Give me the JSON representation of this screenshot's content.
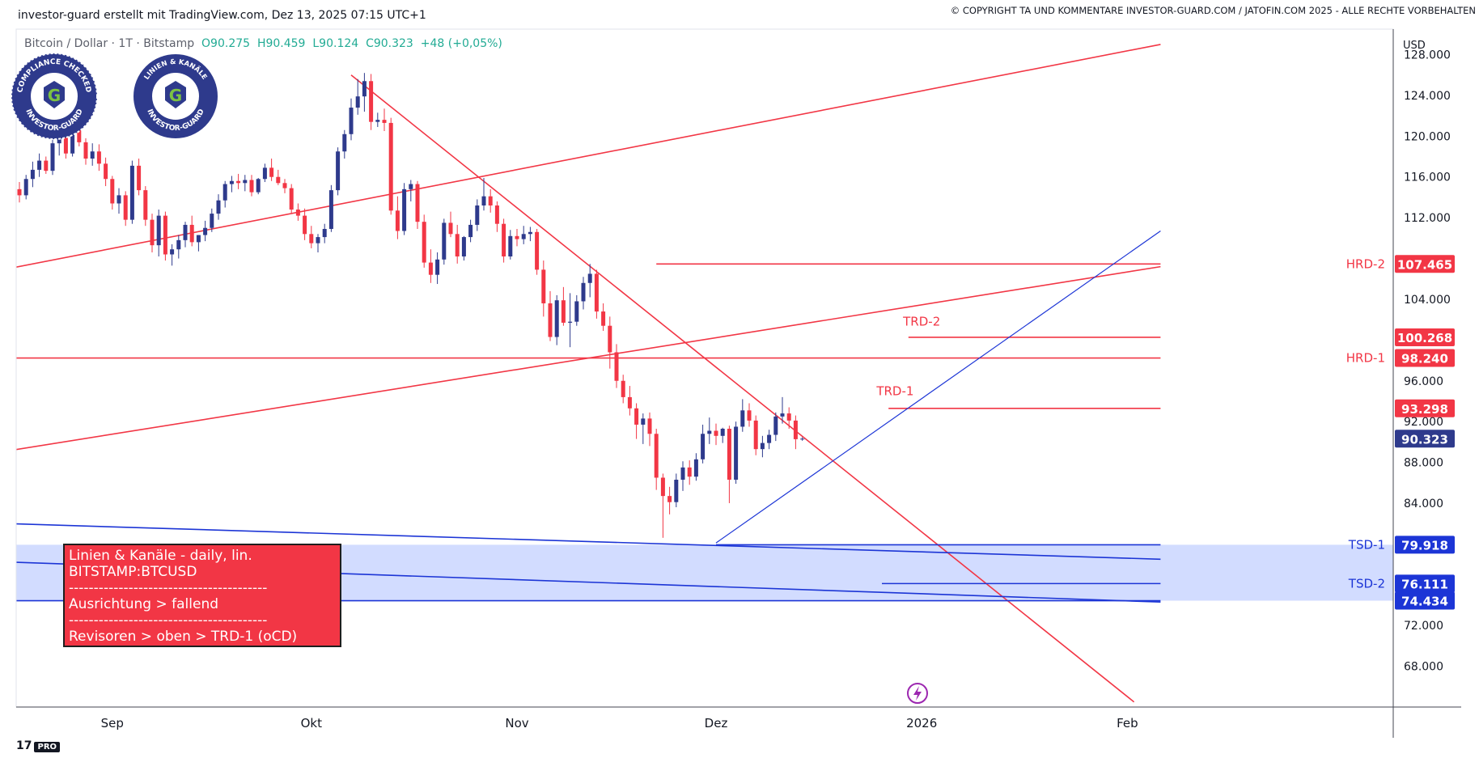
{
  "header": {
    "created_by": "investor-guard erstellt mit TradingView.com, Dez 13, 2025 07:15 UTC+1",
    "copyright": "© COPYRIGHT TA UND KOMMENTARE INVESTOR-GUARD.COM / JATOFIN.COM 2025 - ALLE RECHTE VORBEHALTEN"
  },
  "symbol": {
    "title": "Bitcoin / Dollar · 1T · Bitstamp",
    "open": "O90.275",
    "high": "H90.459",
    "low": "L90.124",
    "close": "C90.323",
    "change": "+48 (+0,05%)"
  },
  "badges": [
    {
      "text_top": "COMPLIANCE CHECKED",
      "text_bottom": "INVESTOR-GUARD",
      "letter": "G"
    },
    {
      "text_top": "LINIEN & KANÄLE",
      "text_bottom": "INVESTOR-GUARD",
      "letter": "G"
    }
  ],
  "info_box": {
    "line1": "Linien & Kanäle - daily, lin.",
    "line2": "BITSTAMP:BTCUSD",
    "sep1": "----------------------------------------",
    "line3": "Ausrichtung > fallend",
    "sep2": "----------------------------------------",
    "line4": "Revisoren > oben > TRD-1 (oCD)"
  },
  "logo": {
    "mark": "17",
    "pro": "PRO"
  },
  "colors": {
    "red": "#f23645",
    "blue_line": "#1c35d6",
    "support_zone": "#d2dcff",
    "up_candle": "#2e3a8c",
    "down_candle": "#f23645",
    "current_price": "#2e3a8c"
  },
  "chart_data": {
    "type": "candlestick",
    "title": "Bitcoin / Dollar · 1T · Bitstamp",
    "currency": "USD",
    "ylim": [
      64000,
      130500
    ],
    "y_ticks": [
      "68.000",
      "72.000",
      "84.000",
      "88.000",
      "92.000",
      "96.000",
      "104.000",
      "112.000",
      "116.000",
      "120.000",
      "124.000",
      "128.000"
    ],
    "x_labels": [
      {
        "label": "Sep",
        "day": 14
      },
      {
        "label": "Okt",
        "day": 44
      },
      {
        "label": "Nov",
        "day": 75
      },
      {
        "label": "Dez",
        "day": 105
      },
      {
        "label": "2026",
        "day": 136
      },
      {
        "label": "Feb",
        "day": 167
      }
    ],
    "price_labels": [
      {
        "name": "HRD-2",
        "value": "107.465",
        "price": 107465,
        "style": "red"
      },
      {
        "name": "",
        "value": "100.268",
        "price": 100268,
        "style": "red"
      },
      {
        "name": "HRD-1",
        "value": "98.240",
        "price": 98240,
        "style": "red"
      },
      {
        "name": "",
        "value": "93.298",
        "price": 93298,
        "style": "red"
      },
      {
        "name": "",
        "value": "90.323",
        "price": 90323,
        "style": "current"
      },
      {
        "name": "TSD-1",
        "value": "79.918",
        "price": 79918,
        "style": "blue"
      },
      {
        "name": "TSD-2",
        "value": "76.111",
        "price": 76111,
        "style": "blue"
      },
      {
        "name": "",
        "value": "74.434",
        "price": 74434,
        "style": "blue"
      }
    ],
    "line_labels": [
      {
        "name": "TRD-2",
        "day": 136,
        "price": 101400
      },
      {
        "name": "TRD-1",
        "day": 132,
        "price": 94600
      }
    ],
    "support_zone": [
      74434,
      79918
    ],
    "lines": [
      {
        "name": "upper-channel",
        "color": "red",
        "p1": [
          -27,
          103800
        ],
        "p2": [
          172,
          129000
        ]
      },
      {
        "name": "lower-channel",
        "color": "red",
        "p1": [
          -27,
          86500
        ],
        "p2": [
          172,
          107200
        ]
      },
      {
        "name": "downtrend-TRD-1",
        "color": "red",
        "p1": [
          50,
          126000
        ],
        "p2": [
          168,
          64500
        ]
      },
      {
        "name": "HRD-2-level",
        "color": "red",
        "p1": [
          96,
          107465
        ],
        "p2": [
          172,
          107465
        ]
      },
      {
        "name": "TRD-2-level",
        "color": "red",
        "p1": [
          134,
          100268
        ],
        "p2": [
          172,
          100268
        ]
      },
      {
        "name": "HRD-1-level",
        "color": "red",
        "p1": [
          -27,
          98240
        ],
        "p2": [
          172,
          98240
        ]
      },
      {
        "name": "TRD-1-level",
        "color": "red",
        "p1": [
          131,
          93298
        ],
        "p2": [
          172,
          93298
        ]
      },
      {
        "name": "uptrend-support",
        "color": "blue",
        "p1": [
          105,
          80100
        ],
        "p2": [
          172,
          110700
        ]
      },
      {
        "name": "TSD-1-line",
        "color": "blue",
        "p1": [
          -27,
          82500
        ],
        "p2": [
          172,
          78500
        ]
      },
      {
        "name": "TSD-2-line",
        "color": "blue",
        "p1": [
          -27,
          78800
        ],
        "p2": [
          172,
          74300
        ]
      },
      {
        "name": "TSD-1-level",
        "color": "blue",
        "p1": [
          105,
          79918
        ],
        "p2": [
          172,
          79918
        ]
      },
      {
        "name": "TSD-2-level",
        "color": "blue",
        "p1": [
          130,
          76111
        ],
        "p2": [
          172,
          76111
        ]
      },
      {
        "name": "zone-bottom",
        "color": "blue",
        "p1": [
          -27,
          74434
        ],
        "p2": [
          172,
          74434
        ]
      }
    ],
    "candles": [
      [
        114800,
        115500,
        113500,
        114200
      ],
      [
        114200,
        116200,
        113800,
        115800
      ],
      [
        115800,
        117500,
        115000,
        116700
      ],
      [
        116700,
        118300,
        116000,
        117600
      ],
      [
        117600,
        118000,
        116300,
        116600
      ],
      [
        116600,
        119900,
        116200,
        119300
      ],
      [
        119300,
        121000,
        118100,
        120200
      ],
      [
        120200,
        121200,
        117800,
        118300
      ],
      [
        118300,
        123800,
        118000,
        123300
      ],
      [
        123300,
        123900,
        119000,
        119400
      ],
      [
        119400,
        119800,
        117200,
        117800
      ],
      [
        117800,
        119300,
        117100,
        118500
      ],
      [
        118500,
        119200,
        116600,
        117300
      ],
      [
        117300,
        117900,
        115100,
        115800
      ],
      [
        115800,
        116100,
        112800,
        113400
      ],
      [
        113400,
        114900,
        112400,
        114200
      ],
      [
        114200,
        114600,
        111200,
        111800
      ],
      [
        111800,
        117600,
        111400,
        117100
      ],
      [
        117100,
        117800,
        114200,
        114700
      ],
      [
        114700,
        115100,
        111200,
        111800
      ],
      [
        111800,
        112400,
        108600,
        109300
      ],
      [
        109300,
        112800,
        108200,
        112200
      ],
      [
        112200,
        112600,
        107800,
        108400
      ],
      [
        108400,
        109400,
        107300,
        108900
      ],
      [
        108900,
        110300,
        108000,
        109800
      ],
      [
        109800,
        111600,
        109100,
        111300
      ],
      [
        111300,
        112200,
        109200,
        109600
      ],
      [
        109600,
        110300,
        108700,
        110300
      ],
      [
        110300,
        111700,
        109700,
        111000
      ],
      [
        111000,
        112900,
        110600,
        112400
      ],
      [
        112400,
        114300,
        111800,
        113700
      ],
      [
        113700,
        115600,
        113000,
        115300
      ],
      [
        115300,
        116100,
        114500,
        115600
      ],
      [
        115600,
        116300,
        114800,
        115400
      ],
      [
        115400,
        116200,
        114600,
        115700
      ],
      [
        115700,
        116200,
        114100,
        114500
      ],
      [
        114500,
        115900,
        114300,
        115800
      ],
      [
        115800,
        117300,
        115500,
        116900
      ],
      [
        116900,
        117800,
        115600,
        116000
      ],
      [
        116000,
        116700,
        115200,
        115400
      ],
      [
        115400,
        115800,
        114400,
        114900
      ],
      [
        114900,
        115300,
        112400,
        112800
      ],
      [
        112800,
        113400,
        111700,
        112200
      ],
      [
        112200,
        112900,
        109800,
        110400
      ],
      [
        110400,
        111200,
        109000,
        109500
      ],
      [
        109500,
        110400,
        108600,
        110100
      ],
      [
        110100,
        111400,
        109500,
        110900
      ],
      [
        110900,
        115200,
        110600,
        114700
      ],
      [
        114700,
        118900,
        114200,
        118500
      ],
      [
        118500,
        120600,
        117800,
        120200
      ],
      [
        120200,
        123700,
        119600,
        122800
      ],
      [
        122800,
        125600,
        122100,
        123900
      ],
      [
        123900,
        126200,
        122400,
        125400
      ],
      [
        125400,
        126100,
        120600,
        121400
      ],
      [
        121400,
        122300,
        120900,
        121600
      ],
      [
        121600,
        122700,
        120500,
        121300
      ],
      [
        121300,
        121800,
        112300,
        112700
      ],
      [
        112700,
        114100,
        109900,
        110700
      ],
      [
        110700,
        115400,
        110300,
        114800
      ],
      [
        114800,
        115700,
        113600,
        115300
      ],
      [
        115300,
        115600,
        110900,
        111600
      ],
      [
        111600,
        112300,
        107100,
        107600
      ],
      [
        107600,
        108900,
        105600,
        106400
      ],
      [
        106400,
        108600,
        105500,
        107900
      ],
      [
        107900,
        111900,
        107400,
        111500
      ],
      [
        111500,
        112600,
        110100,
        110400
      ],
      [
        110400,
        111300,
        107500,
        108200
      ],
      [
        108200,
        110200,
        107800,
        110100
      ],
      [
        110100,
        111800,
        109600,
        111300
      ],
      [
        111300,
        113800,
        110700,
        113200
      ],
      [
        113200,
        115900,
        112700,
        114100
      ],
      [
        114100,
        114800,
        112500,
        113200
      ],
      [
        113200,
        113600,
        110600,
        111400
      ],
      [
        111400,
        111900,
        107600,
        108200
      ],
      [
        108200,
        110800,
        107900,
        110200
      ],
      [
        110200,
        110900,
        109200,
        109900
      ],
      [
        109900,
        111200,
        109400,
        110400
      ],
      [
        110400,
        111100,
        109700,
        110600
      ],
      [
        110600,
        110900,
        106400,
        106900
      ],
      [
        106900,
        107800,
        102300,
        103600
      ],
      [
        103600,
        104800,
        99900,
        100300
      ],
      [
        100300,
        104400,
        99500,
        103900
      ],
      [
        103900,
        105200,
        101400,
        101700
      ],
      [
        101700,
        104600,
        99300,
        101800
      ],
      [
        101800,
        104400,
        101400,
        103800
      ],
      [
        103800,
        106200,
        103000,
        105600
      ],
      [
        105600,
        107465,
        104200,
        106500
      ],
      [
        106500,
        106900,
        102100,
        102800
      ],
      [
        102800,
        103600,
        100900,
        101400
      ],
      [
        101400,
        102300,
        97200,
        98800
      ],
      [
        98800,
        99600,
        95300,
        96000
      ],
      [
        96000,
        96600,
        93800,
        94400
      ],
      [
        94400,
        95500,
        92600,
        93300
      ],
      [
        93300,
        93800,
        90300,
        91700
      ],
      [
        91700,
        92800,
        89800,
        92300
      ],
      [
        92300,
        92900,
        89600,
        90800
      ],
      [
        90800,
        91300,
        85300,
        86500
      ],
      [
        86500,
        86900,
        80600,
        84700
      ],
      [
        84700,
        85600,
        82900,
        84100
      ],
      [
        84100,
        86900,
        83600,
        86300
      ],
      [
        86300,
        88100,
        85200,
        87500
      ],
      [
        87500,
        88200,
        85800,
        86600
      ],
      [
        86600,
        88900,
        86200,
        88300
      ],
      [
        88300,
        91700,
        87900,
        90800
      ],
      [
        90800,
        92400,
        89800,
        91100
      ],
      [
        91100,
        91800,
        89700,
        90600
      ],
      [
        90600,
        91400,
        89900,
        91300
      ],
      [
        91300,
        91600,
        84000,
        86300
      ],
      [
        86300,
        92000,
        85900,
        91500
      ],
      [
        91500,
        94200,
        91000,
        93100
      ],
      [
        93100,
        93800,
        91500,
        92100
      ],
      [
        92100,
        92600,
        88700,
        89300
      ],
      [
        89300,
        90600,
        88500,
        89900
      ],
      [
        89900,
        91200,
        89300,
        90700
      ],
      [
        90700,
        92900,
        90100,
        92500
      ],
      [
        92500,
        94400,
        91800,
        92800
      ],
      [
        92800,
        93400,
        91300,
        92100
      ],
      [
        92100,
        92600,
        89300,
        90275
      ],
      [
        90275,
        90459,
        90124,
        90323
      ]
    ]
  }
}
